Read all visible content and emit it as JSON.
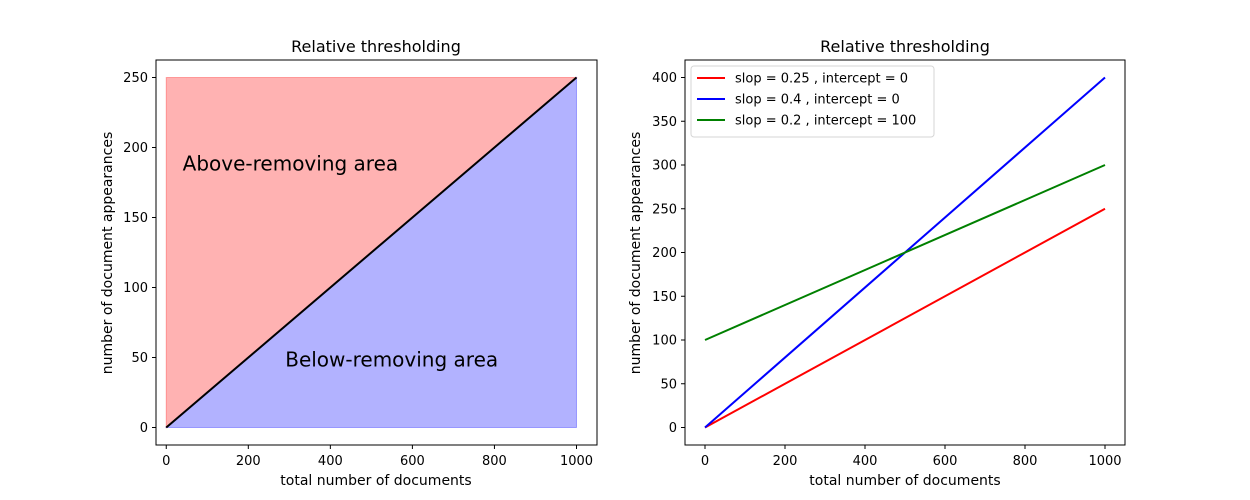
{
  "chart_data": [
    {
      "type": "area",
      "title": "Relative thresholding",
      "xlabel": "total number of documents",
      "ylabel": "number of document appearances",
      "xlim": [
        -25,
        1050
      ],
      "ylim": [
        -12.5,
        262.5
      ],
      "xticks": [
        0,
        200,
        400,
        600,
        800,
        1000
      ],
      "yticks": [
        0,
        50,
        100,
        150,
        200,
        250
      ],
      "grid": false,
      "line": {
        "x": [
          0,
          1000
        ],
        "y": [
          0,
          250
        ],
        "color": "#000000"
      },
      "regions": [
        {
          "name": "Above-removing area",
          "polygon_x": [
            0,
            0,
            1000
          ],
          "polygon_y": [
            0,
            250,
            250
          ],
          "color": "#ff0000",
          "alpha": 0.3
        },
        {
          "name": "Below-removing area",
          "polygon_x": [
            0,
            1000,
            1000
          ],
          "polygon_y": [
            0,
            250,
            0
          ],
          "color": "#0000ff",
          "alpha": 0.3
        }
      ],
      "annotations": [
        {
          "text": "Above-removing area",
          "x": 40,
          "y": 180
        },
        {
          "text": "Below-removing area",
          "x": 290,
          "y": 40
        }
      ]
    },
    {
      "type": "line",
      "title": "Relative thresholding",
      "xlabel": "total number of documents",
      "ylabel": "number of document appearances",
      "xlim": [
        -50,
        1050
      ],
      "ylim": [
        -20,
        420
      ],
      "xticks": [
        0,
        200,
        400,
        600,
        800,
        1000
      ],
      "yticks": [
        0,
        50,
        100,
        150,
        200,
        250,
        300,
        350,
        400
      ],
      "grid": false,
      "legend": "top-left",
      "series": [
        {
          "name": "slop = 0.25 , intercept = 0",
          "x": [
            0,
            1000
          ],
          "y": [
            0,
            250
          ],
          "color": "#ff0000"
        },
        {
          "name": "slop = 0.4 , intercept = 0",
          "x": [
            0,
            1000
          ],
          "y": [
            0,
            400
          ],
          "color": "#0000ff"
        },
        {
          "name": "slop = 0.2 , intercept = 100",
          "x": [
            0,
            1000
          ],
          "y": [
            100,
            300
          ],
          "color": "#008000"
        }
      ]
    }
  ]
}
